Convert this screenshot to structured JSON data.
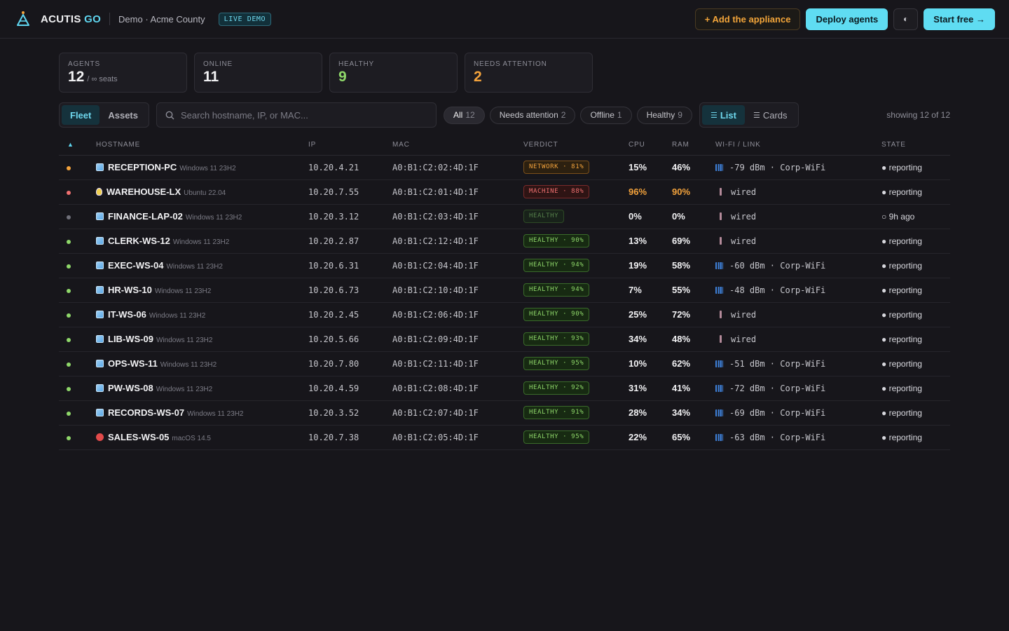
{
  "header": {
    "brand_main": "ACUTIS",
    "brand_accent": "GO",
    "tenant": "Demo · Acme County",
    "badge": "LIVE DEMO",
    "add_appliance": "+ Add the appliance",
    "deploy_agents": "Deploy agents",
    "theme_toggle": "◐",
    "start_free": "Start free →"
  },
  "stats": [
    {
      "label": "AGENTS",
      "value": "12",
      "sub": "/ ∞ seats"
    },
    {
      "label": "ONLINE",
      "value": "11"
    },
    {
      "label": "HEALTHY",
      "value": "9"
    },
    {
      "label": "NEEDS ATTENTION",
      "value": "2"
    }
  ],
  "tabs": {
    "fleet": "Fleet",
    "assets": "Assets"
  },
  "search": {
    "placeholder": "Search hostname, IP, or MAC..."
  },
  "filters": [
    {
      "label": "All",
      "count": "12"
    },
    {
      "label": "Needs attention",
      "count": "2"
    },
    {
      "label": "Offline",
      "count": "1"
    },
    {
      "label": "Healthy",
      "count": "9"
    }
  ],
  "view": {
    "list": "List",
    "cards": "Cards"
  },
  "showing": "showing 12 of 12",
  "columns": {
    "sort": "▲",
    "hostname": "HOSTNAME",
    "ip": "IP",
    "mac": "MAC",
    "verdict": "VERDICT",
    "cpu": "CPU",
    "ram": "RAM",
    "wifi": "WI-FI / LINK",
    "state": "STATE"
  },
  "colors": {
    "accent": "#5fd6f0",
    "orange": "#f4a33c",
    "red": "#f07070",
    "green": "#8fd86a",
    "gray": "#70707a"
  },
  "rows": [
    {
      "status": "orange",
      "os_icon": "windows-icon",
      "host": "RECEPTION-PC",
      "os": "Windows 11 23H2",
      "ip": "10.20.4.21",
      "mac": "A0:B1:C2:02:4D:1F",
      "verdict": "NETWORK · 81%",
      "verdict_kind": "net",
      "cpu": "15%",
      "cpu_hot": false,
      "ram": "46%",
      "ram_hot": false,
      "link_type": "wifi",
      "link": "-79 dBm · Corp-WiFi",
      "state": "● reporting"
    },
    {
      "status": "red",
      "os_icon": "linux-icon",
      "host": "WAREHOUSE-LX",
      "os": "Ubuntu 22.04",
      "ip": "10.20.7.55",
      "mac": "A0:B1:C2:01:4D:1F",
      "verdict": "MACHINE · 88%",
      "verdict_kind": "mac",
      "cpu": "96%",
      "cpu_hot": true,
      "ram": "90%",
      "ram_hot": true,
      "link_type": "wired",
      "link": "wired",
      "state": "● reporting"
    },
    {
      "status": "gray",
      "os_icon": "windows-icon",
      "host": "FINANCE-LAP-02",
      "os": "Windows 11 23H2",
      "ip": "10.20.3.12",
      "mac": "A0:B1:C2:03:4D:1F",
      "verdict": "HEALTHY",
      "verdict_kind": "dim",
      "cpu": "0%",
      "cpu_hot": false,
      "ram": "0%",
      "ram_hot": false,
      "link_type": "wired",
      "link": "wired",
      "state": "○ 9h ago"
    },
    {
      "status": "green",
      "os_icon": "windows-icon",
      "host": "CLERK-WS-12",
      "os": "Windows 11 23H2",
      "ip": "10.20.2.87",
      "mac": "A0:B1:C2:12:4D:1F",
      "verdict": "HEALTHY · 90%",
      "verdict_kind": "ok",
      "cpu": "13%",
      "cpu_hot": false,
      "ram": "69%",
      "ram_hot": false,
      "link_type": "wired",
      "link": "wired",
      "state": "● reporting"
    },
    {
      "status": "green",
      "os_icon": "windows-icon",
      "host": "EXEC-WS-04",
      "os": "Windows 11 23H2",
      "ip": "10.20.6.31",
      "mac": "A0:B1:C2:04:4D:1F",
      "verdict": "HEALTHY · 94%",
      "verdict_kind": "ok",
      "cpu": "19%",
      "cpu_hot": false,
      "ram": "58%",
      "ram_hot": false,
      "link_type": "wifi",
      "link": "-60 dBm · Corp-WiFi",
      "state": "● reporting"
    },
    {
      "status": "green",
      "os_icon": "windows-icon",
      "host": "HR-WS-10",
      "os": "Windows 11 23H2",
      "ip": "10.20.6.73",
      "mac": "A0:B1:C2:10:4D:1F",
      "verdict": "HEALTHY · 94%",
      "verdict_kind": "ok",
      "cpu": "7%",
      "cpu_hot": false,
      "ram": "55%",
      "ram_hot": false,
      "link_type": "wifi",
      "link": "-48 dBm · Corp-WiFi",
      "state": "● reporting"
    },
    {
      "status": "green",
      "os_icon": "windows-icon",
      "host": "IT-WS-06",
      "os": "Windows 11 23H2",
      "ip": "10.20.2.45",
      "mac": "A0:B1:C2:06:4D:1F",
      "verdict": "HEALTHY · 90%",
      "verdict_kind": "ok",
      "cpu": "25%",
      "cpu_hot": false,
      "ram": "72%",
      "ram_hot": false,
      "link_type": "wired",
      "link": "wired",
      "state": "● reporting"
    },
    {
      "status": "green",
      "os_icon": "windows-icon",
      "host": "LIB-WS-09",
      "os": "Windows 11 23H2",
      "ip": "10.20.5.66",
      "mac": "A0:B1:C2:09:4D:1F",
      "verdict": "HEALTHY · 93%",
      "verdict_kind": "ok",
      "cpu": "34%",
      "cpu_hot": false,
      "ram": "48%",
      "ram_hot": false,
      "link_type": "wired",
      "link": "wired",
      "state": "● reporting"
    },
    {
      "status": "green",
      "os_icon": "windows-icon",
      "host": "OPS-WS-11",
      "os": "Windows 11 23H2",
      "ip": "10.20.7.80",
      "mac": "A0:B1:C2:11:4D:1F",
      "verdict": "HEALTHY · 95%",
      "verdict_kind": "ok",
      "cpu": "10%",
      "cpu_hot": false,
      "ram": "62%",
      "ram_hot": false,
      "link_type": "wifi",
      "link": "-51 dBm · Corp-WiFi",
      "state": "● reporting"
    },
    {
      "status": "green",
      "os_icon": "windows-icon",
      "host": "PW-WS-08",
      "os": "Windows 11 23H2",
      "ip": "10.20.4.59",
      "mac": "A0:B1:C2:08:4D:1F",
      "verdict": "HEALTHY · 92%",
      "verdict_kind": "ok",
      "cpu": "31%",
      "cpu_hot": false,
      "ram": "41%",
      "ram_hot": false,
      "link_type": "wifi",
      "link": "-72 dBm · Corp-WiFi",
      "state": "● reporting"
    },
    {
      "status": "green",
      "os_icon": "windows-icon",
      "host": "RECORDS-WS-07",
      "os": "Windows 11 23H2",
      "ip": "10.20.3.52",
      "mac": "A0:B1:C2:07:4D:1F",
      "verdict": "HEALTHY · 91%",
      "verdict_kind": "ok",
      "cpu": "28%",
      "cpu_hot": false,
      "ram": "34%",
      "ram_hot": false,
      "link_type": "wifi",
      "link": "-69 dBm · Corp-WiFi",
      "state": "● reporting"
    },
    {
      "status": "green",
      "os_icon": "macos-icon",
      "host": "SALES-WS-05",
      "os": "macOS 14.5",
      "ip": "10.20.7.38",
      "mac": "A0:B1:C2:05:4D:1F",
      "verdict": "HEALTHY · 95%",
      "verdict_kind": "ok",
      "cpu": "22%",
      "cpu_hot": false,
      "ram": "65%",
      "ram_hot": false,
      "link_type": "wifi",
      "link": "-63 dBm · Corp-WiFi",
      "state": "● reporting"
    }
  ]
}
